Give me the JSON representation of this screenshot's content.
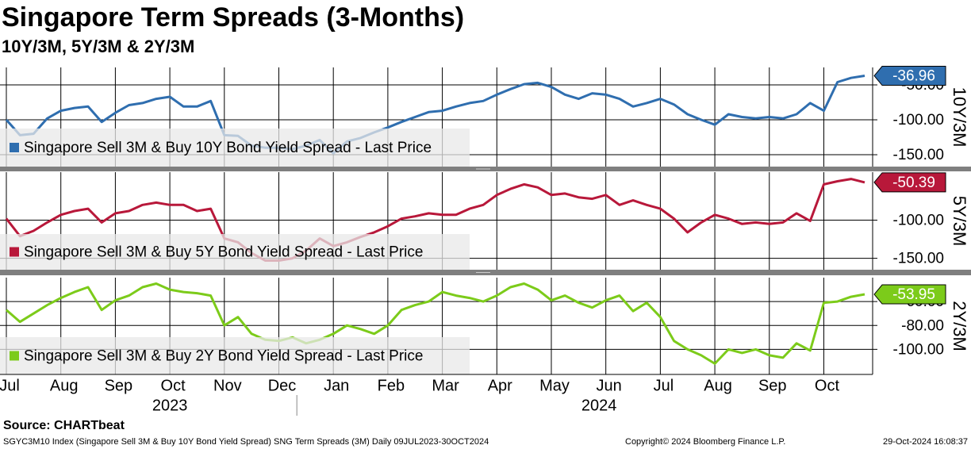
{
  "chart_data": {
    "type": "line",
    "title": "Singapore Term Spreads (3-Months)",
    "subtitle": "10Y/3M, 5Y/3M & 2Y/3M",
    "categories": [
      "Jul",
      null,
      null,
      null,
      "Aug",
      null,
      null,
      null,
      "Sep",
      null,
      null,
      null,
      "Oct",
      null,
      null,
      null,
      "Nov",
      null,
      null,
      null,
      "Dec",
      null,
      null,
      null,
      "Jan",
      null,
      null,
      null,
      "Feb",
      null,
      null,
      null,
      "Mar",
      null,
      null,
      null,
      "Apr",
      null,
      null,
      null,
      "May",
      null,
      null,
      null,
      "Jun",
      null,
      null,
      null,
      "Jul",
      null,
      null,
      null,
      "Aug",
      null,
      null,
      null,
      "Sep",
      null,
      null,
      null,
      "Oct",
      null,
      null,
      null
    ],
    "years": [
      "2023",
      "2024"
    ],
    "grid": true,
    "panels": [
      {
        "axis_title": "10Y/3M",
        "ylim": [
          -167,
          -25
        ],
        "yticks": [
          {
            "value": -50,
            "label": "-50.00"
          },
          {
            "value": -100,
            "label": "-100.00"
          },
          {
            "value": -150,
            "label": "-150.00"
          }
        ],
        "series": [
          {
            "name": "Singapore Sell 3M & Buy 10Y Bond Yield Spread - Last Price",
            "color": "#2f6eaf",
            "values": [
              -100,
              -122,
              -120,
              -98,
              -87,
              -83,
              -81,
              -103,
              -90,
              -79,
              -76,
              -70,
              -67,
              -81,
              -81,
              -73,
              -122,
              -123,
              -137,
              -140,
              -140,
              -142,
              -137,
              -129,
              -148,
              -131,
              -126,
              -118,
              -111,
              -103,
              -96,
              -89,
              -87,
              -81,
              -76,
              -73,
              -64,
              -56,
              -49,
              -47,
              -53,
              -64,
              -70,
              -62,
              -64,
              -70,
              -81,
              -76,
              -70,
              -78,
              -92,
              -100,
              -107,
              -92,
              -96,
              -98,
              -96,
              -98,
              -92,
              -76,
              -87,
              -46,
              -40,
              -36.96
            ]
          }
        ]
      },
      {
        "axis_title": "5Y/3M",
        "ylim": [
          -165,
          -37
        ],
        "yticks": [
          {
            "value": -100,
            "label": "-100.00"
          },
          {
            "value": -150,
            "label": "-150.00"
          }
        ],
        "series": [
          {
            "name": "Singapore Sell 3M & Buy 5Y Bond Yield Spread - Last Price",
            "color": "#b8183a",
            "values": [
              -98,
              -121,
              -114,
              -103,
              -93,
              -88,
              -85,
              -103,
              -91,
              -88,
              -80,
              -77,
              -80,
              -80,
              -88,
              -85,
              -124,
              -129,
              -143,
              -153,
              -153,
              -150,
              -140,
              -124,
              -134,
              -129,
              -122,
              -116,
              -108,
              -98,
              -95,
              -91,
              -93,
              -93,
              -85,
              -80,
              -67,
              -59,
              -53,
              -57,
              -67,
              -65,
              -70,
              -72,
              -67,
              -80,
              -74,
              -80,
              -85,
              -98,
              -116,
              -103,
              -93,
              -98,
              -105,
              -103,
              -105,
              -103,
              -91,
              -101,
              -53,
              -49,
              -46,
              -50.39
            ]
          }
        ]
      },
      {
        "axis_title": "2Y/3M",
        "ylim": [
          -121,
          -40
        ],
        "yticks": [
          {
            "value": -60,
            "label": "-60.00"
          },
          {
            "value": -80,
            "label": "-80.00"
          },
          {
            "value": -100,
            "label": "-100.00"
          }
        ],
        "series": [
          {
            "name": "Singapore Sell 3M & Buy 2Y Bond Yield Spread - Last Price",
            "color": "#7ccb1a",
            "values": [
              -67,
              -77,
              -70,
              -63,
              -57,
              -52,
              -48,
              -67,
              -59,
              -55,
              -48,
              -45,
              -50,
              -52,
              -53,
              -55,
              -80,
              -73,
              -87,
              -92,
              -93,
              -90,
              -95,
              -92,
              -87,
              -80,
              -83,
              -87,
              -80,
              -67,
              -63,
              -60,
              -52,
              -55,
              -57,
              -60,
              -55,
              -48,
              -45,
              -50,
              -59,
              -55,
              -61,
              -65,
              -59,
              -55,
              -68,
              -61,
              -73,
              -93,
              -100,
              -105,
              -112,
              -100,
              -103,
              -100,
              -105,
              -107,
              -95,
              -101,
              -61,
              -60,
              -56,
              -53.95
            ]
          }
        ]
      }
    ],
    "source": "Source: CHARTbeat",
    "footnote": "SGYC3M10 Index (Singapore Sell 3M & Buy 10Y Bond Yield Spread) SNG Term Spreads (3M)  Daily 09JUL2023-30OCT2024",
    "copyright": "Copyright© 2024 Bloomberg Finance L.P.",
    "timestamp": "29-Oct-2024 16:08:37"
  }
}
